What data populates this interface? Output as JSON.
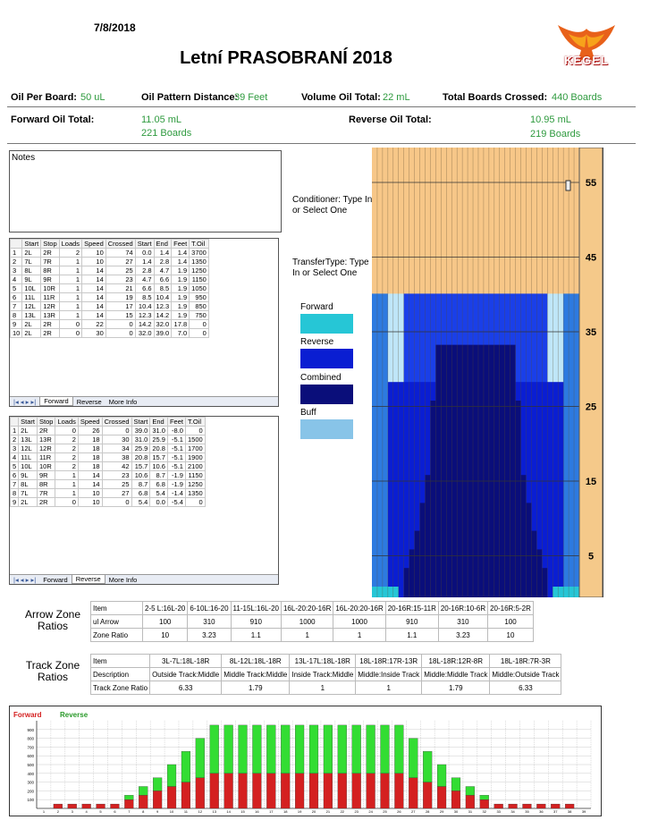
{
  "header": {
    "date": "7/8/2018",
    "title": "Letní PRASOBRANÍ 2018",
    "logo_text": "KEGEL"
  },
  "summary": {
    "oil_per_board_label": "Oil Per Board:",
    "oil_per_board_value": "50 uL",
    "distance_label": "Oil Pattern Distance:",
    "distance_value": "39 Feet",
    "volume_label": "Volume Oil Total:",
    "volume_value": "22 mL",
    "boards_label": "Total Boards Crossed:",
    "boards_value": "440 Boards",
    "forward_label": "Forward Oil Total:",
    "forward_ml": "11.05 mL",
    "forward_boards": "221 Boards",
    "reverse_label": "Reverse Oil Total:",
    "reverse_ml": "10.95 mL",
    "reverse_boards": "219 Boards"
  },
  "notes_label": "Notes",
  "table_headers": [
    "Start",
    "Stop",
    "Loads",
    "Speed",
    "Crossed",
    "Start",
    "End",
    "Feet",
    "T.Oil"
  ],
  "forward_table": [
    [
      "1",
      "2L",
      "2R",
      "2",
      "10",
      "74",
      "0.0",
      "1.4",
      "1.4",
      "3700"
    ],
    [
      "2",
      "7L",
      "7R",
      "1",
      "10",
      "27",
      "1.4",
      "2.8",
      "1.4",
      "1350"
    ],
    [
      "3",
      "8L",
      "8R",
      "1",
      "14",
      "25",
      "2.8",
      "4.7",
      "1.9",
      "1250"
    ],
    [
      "4",
      "9L",
      "9R",
      "1",
      "14",
      "23",
      "4.7",
      "6.6",
      "1.9",
      "1150"
    ],
    [
      "5",
      "10L",
      "10R",
      "1",
      "14",
      "21",
      "6.6",
      "8.5",
      "1.9",
      "1050"
    ],
    [
      "6",
      "11L",
      "11R",
      "1",
      "14",
      "19",
      "8.5",
      "10.4",
      "1.9",
      "950"
    ],
    [
      "7",
      "12L",
      "12R",
      "1",
      "14",
      "17",
      "10.4",
      "12.3",
      "1.9",
      "850"
    ],
    [
      "8",
      "13L",
      "13R",
      "1",
      "14",
      "15",
      "12.3",
      "14.2",
      "1.9",
      "750"
    ],
    [
      "9",
      "2L",
      "2R",
      "0",
      "22",
      "0",
      "14.2",
      "32.0",
      "17.8",
      "0"
    ],
    [
      "10",
      "2L",
      "2R",
      "0",
      "30",
      "0",
      "32.0",
      "39.0",
      "7.0",
      "0"
    ]
  ],
  "reverse_table": [
    [
      "1",
      "2L",
      "2R",
      "0",
      "26",
      "0",
      "39.0",
      "31.0",
      "-8.0",
      "0"
    ],
    [
      "2",
      "13L",
      "13R",
      "2",
      "18",
      "30",
      "31.0",
      "25.9",
      "-5.1",
      "1500"
    ],
    [
      "3",
      "12L",
      "12R",
      "2",
      "18",
      "34",
      "25.9",
      "20.8",
      "-5.1",
      "1700"
    ],
    [
      "4",
      "11L",
      "11R",
      "2",
      "18",
      "38",
      "20.8",
      "15.7",
      "-5.1",
      "1900"
    ],
    [
      "5",
      "10L",
      "10R",
      "2",
      "18",
      "42",
      "15.7",
      "10.6",
      "-5.1",
      "2100"
    ],
    [
      "6",
      "9L",
      "9R",
      "1",
      "14",
      "23",
      "10.6",
      "8.7",
      "-1.9",
      "1150"
    ],
    [
      "7",
      "8L",
      "8R",
      "1",
      "14",
      "25",
      "8.7",
      "6.8",
      "-1.9",
      "1250"
    ],
    [
      "8",
      "7L",
      "7R",
      "1",
      "10",
      "27",
      "6.8",
      "5.4",
      "-1.4",
      "1350"
    ],
    [
      "9",
      "2L",
      "2R",
      "0",
      "10",
      "0",
      "5.4",
      "0.0",
      "-5.4",
      "0"
    ]
  ],
  "sheet_tabs": [
    "Forward",
    "Reverse",
    "More Info"
  ],
  "conditioner_text": "Conditioner: Type In or Select One",
  "transfer_text": "TransferType: Type In or Select One",
  "legend": [
    {
      "label": "Forward",
      "color": "#26c6d6"
    },
    {
      "label": "Reverse",
      "color": "#0a1ed2"
    },
    {
      "label": "Combined",
      "color": "#0a0e7a"
    },
    {
      "label": "Buff",
      "color": "#88c4e8"
    }
  ],
  "lane_feet_labels": [
    "55",
    "45",
    "35",
    "25",
    "15",
    "5"
  ],
  "arrow_zone": {
    "label": "Arrow Zone Ratios",
    "row_labels": [
      "Item",
      "ul Arrow",
      "Zone Ratio"
    ],
    "columns": [
      [
        "2-5 L:16L-20",
        "100",
        "10"
      ],
      [
        "6-10L:16-20",
        "310",
        "3.23"
      ],
      [
        "11-15L:16L-20",
        "910",
        "1.1"
      ],
      [
        "16L-20:20-16R",
        "1000",
        "1"
      ],
      [
        "16L-20:20-16R",
        "1000",
        "1"
      ],
      [
        "20-16R:15-11R",
        "910",
        "1.1"
      ],
      [
        "20-16R:10-6R",
        "310",
        "3.23"
      ],
      [
        "20-16R:5-2R",
        "100",
        "10"
      ]
    ]
  },
  "track_zone": {
    "label": "Track Zone Ratios",
    "row_labels": [
      "Item",
      "Description",
      "Track Zone Ratio"
    ],
    "columns": [
      [
        "3L-7L:18L-18R",
        "Outside Track:Middle",
        "6.33"
      ],
      [
        "8L-12L:18L-18R",
        "Middle Track:Middle",
        "1.79"
      ],
      [
        "13L-17L:18L-18R",
        "Inside Track:Middle",
        "1"
      ],
      [
        "18L-18R:17R-13R",
        "Middle:Inside Track",
        "1"
      ],
      [
        "18L-18R:12R-8R",
        "Middle:Middle Track",
        "1.79"
      ],
      [
        "18L-18R:7R-3R",
        "Middle:Outside Track",
        "6.33"
      ]
    ]
  },
  "chart_data": {
    "type": "bar",
    "legend": [
      "Forward",
      "Reverse"
    ],
    "series_colors": [
      "#d42020",
      "#33dd33"
    ],
    "categories": [
      "1",
      "2",
      "3",
      "4",
      "5",
      "6",
      "7",
      "8",
      "9",
      "10",
      "11",
      "12",
      "13",
      "14",
      "15",
      "16",
      "17",
      "18",
      "19",
      "20",
      "21",
      "22",
      "23",
      "24",
      "25",
      "26",
      "27",
      "28",
      "29",
      "30",
      "31",
      "32",
      "33",
      "34",
      "35",
      "36",
      "37",
      "38",
      "39"
    ],
    "series": [
      {
        "name": "Forward",
        "values": [
          0,
          50,
          50,
          50,
          50,
          50,
          100,
          150,
          200,
          250,
          300,
          350,
          400,
          400,
          400,
          400,
          400,
          400,
          400,
          400,
          400,
          400,
          400,
          400,
          400,
          400,
          350,
          300,
          250,
          200,
          150,
          100,
          50,
          50,
          50,
          50,
          50,
          50,
          0
        ]
      },
      {
        "name": "Reverse",
        "values": [
          0,
          0,
          0,
          0,
          0,
          0,
          50,
          100,
          150,
          250,
          350,
          450,
          550,
          550,
          550,
          550,
          550,
          550,
          550,
          550,
          550,
          550,
          550,
          550,
          550,
          550,
          450,
          350,
          250,
          150,
          100,
          50,
          0,
          0,
          0,
          0,
          0,
          0,
          0
        ]
      }
    ],
    "yticks": [
      "100",
      "200",
      "300",
      "400",
      "500",
      "600",
      "700",
      "800",
      "900"
    ],
    "ylim": [
      0,
      1000
    ]
  }
}
